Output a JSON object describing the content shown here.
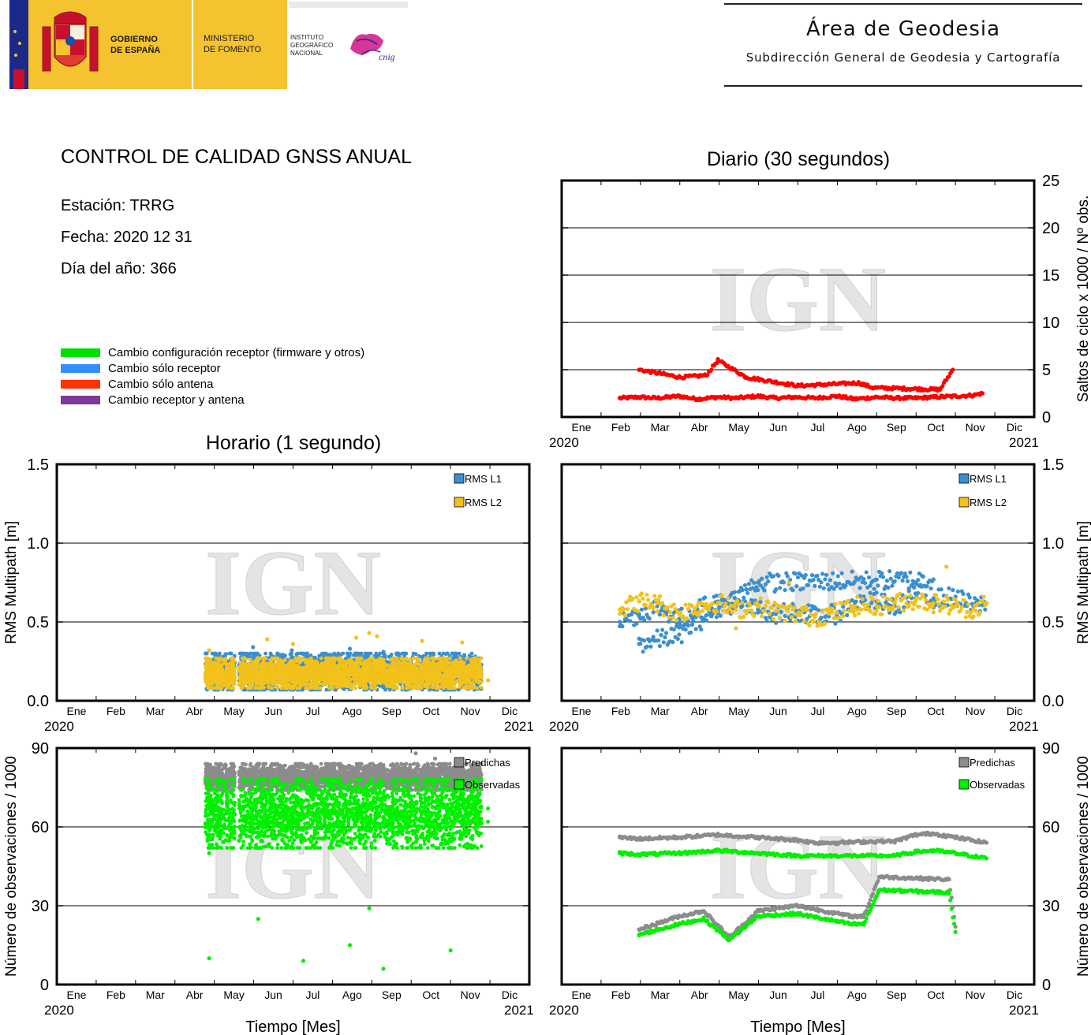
{
  "header": {
    "gov_line1": "GOBIERNO",
    "gov_line2": "DE ESPAÑA",
    "min_line1": "MINISTERIO",
    "min_line2": "DE FOMENTO",
    "ign_line1": "INSTITUTO",
    "ign_line2": "GEOGRÁFICO",
    "ign_line3": "NACIONAL",
    "cnig_logo": "cnig",
    "area_title": "Área de Geodesia",
    "area_subtitle": "Subdirección General de Geodesia y Cartografía"
  },
  "report": {
    "title": "CONTROL DE CALIDAD GNSS ANUAL",
    "station": "Estación: TRRG",
    "date": "Fecha: 2020 12 31",
    "doy": "Día del año: 366"
  },
  "legend": [
    {
      "label": "Cambio configuración receptor (firmware y otros)",
      "color": "#00e000"
    },
    {
      "label": "Cambio sólo receptor",
      "color": "#2f8fff"
    },
    {
      "label": "Cambio sólo antena",
      "color": "#ff3300"
    },
    {
      "label": "Cambio receptor y antena",
      "color": "#7b3a99"
    }
  ],
  "colors": {
    "slips": "#ff0000",
    "rms_l1": "#3a8fd0",
    "rms_l2": "#f2c21b",
    "predichas": "#8c8c8c",
    "observadas": "#00f000",
    "watermark": "IGN"
  },
  "axes": {
    "months": [
      "Ene",
      "Feb",
      "Mar",
      "Abr",
      "May",
      "Jun",
      "Jul",
      "Ago",
      "Sep",
      "Oct",
      "Nov",
      "Dic"
    ],
    "year_start": "2020",
    "year_end": "2021",
    "xlabel": "Tiempo [Mes]"
  },
  "titles": {
    "daily": "Diario (30 segundos)",
    "hourly": "Horario (1 segundo)"
  },
  "chart_data": [
    {
      "id": "daily-slips",
      "type": "scatter",
      "title": "Diario (30 segundos)",
      "xlabel": "",
      "ylabel": "Saltos de ciclo x 1000 / Nº obs.",
      "x_range": [
        "2020-01-01",
        "2021-01-01"
      ],
      "ylim": [
        0,
        25
      ],
      "yticks": [
        "0",
        "5",
        "10",
        "15",
        "20",
        "25"
      ],
      "grid": true,
      "series": [
        {
          "color": "#ff0000",
          "points": [
            [
              "2020-02-15",
              2.0
            ],
            [
              "2020-03-01",
              2.1
            ],
            [
              "2020-03-15",
              2.0
            ],
            [
              "2020-04-01",
              2.2
            ],
            [
              "2020-04-15",
              1.9
            ],
            [
              "2020-05-01",
              2.1
            ],
            [
              "2020-05-15",
              2.0
            ],
            [
              "2020-06-01",
              2.2
            ],
            [
              "2020-06-15",
              2.0
            ],
            [
              "2020-07-01",
              2.1
            ],
            [
              "2020-07-15",
              2.0
            ],
            [
              "2020-08-01",
              2.2
            ],
            [
              "2020-08-15",
              1.9
            ],
            [
              "2020-09-01",
              2.1
            ],
            [
              "2020-09-15",
              2.0
            ],
            [
              "2020-10-01",
              2.0
            ],
            [
              "2020-10-15",
              2.1
            ],
            [
              "2020-11-01",
              2.2
            ],
            [
              "2020-11-15",
              2.3
            ],
            [
              "2020-11-22",
              2.5
            ],
            [
              "2020-03-01",
              5.0
            ],
            [
              "2020-04-02",
              4.2
            ],
            [
              "2020-04-22",
              4.4
            ],
            [
              "2020-05-01",
              6.0
            ],
            [
              "2020-05-23",
              4.2
            ],
            [
              "2020-07-02",
              3.3
            ],
            [
              "2020-08-18",
              3.6
            ],
            [
              "2020-08-29",
              3.1
            ],
            [
              "2020-10-20",
              2.9
            ],
            [
              "2020-10-30",
              5.0
            ]
          ]
        }
      ]
    },
    {
      "id": "hourly-rms",
      "type": "scatter",
      "xlabel": "",
      "ylabel": "RMS Multipath [m]",
      "x_range": [
        "2020-01-01",
        "2021-01-01"
      ],
      "ylim": [
        0,
        1.5
      ],
      "yticks": [
        "0.0",
        "0.5",
        "1.0",
        "1.5"
      ],
      "grid": true,
      "series": [
        {
          "name": "RMS L1",
          "color": "#3a8fd0",
          "range": [
            [
              "2020-04-25",
              "2020-11-25"
            ],
            [
              0.07,
              0.3
            ]
          ],
          "outliers": [
            [
              "2020-06-01",
              0.34
            ],
            [
              "2020-07-01",
              0.32
            ],
            [
              "2020-08-15",
              0.33
            ],
            [
              "2020-09-10",
              0.31
            ],
            [
              "2020-11-05",
              0.3
            ]
          ]
        },
        {
          "name": "RMS L2",
          "color": "#f2c21b",
          "range": [
            [
              "2020-04-25",
              "2020-11-25"
            ],
            [
              0.08,
              0.27
            ]
          ],
          "outliers": [
            [
              "2020-04-28",
              0.32
            ],
            [
              "2020-06-12",
              0.39
            ],
            [
              "2020-07-02",
              0.36
            ],
            [
              "2020-08-20",
              0.4
            ],
            [
              "2020-08-30",
              0.43
            ],
            [
              "2020-09-05",
              0.41
            ],
            [
              "2020-10-10",
              0.38
            ],
            [
              "2020-11-10",
              0.37
            ],
            [
              "2020-11-30",
              0.13
            ]
          ]
        }
      ]
    },
    {
      "id": "daily-rms",
      "type": "scatter",
      "xlabel": "",
      "ylabel": "RMS Multipath [m]",
      "x_range": [
        "2020-01-01",
        "2021-01-01"
      ],
      "ylim": [
        0,
        1.5
      ],
      "yticks": [
        "0.0",
        "0.5",
        "1.0",
        "1.5"
      ],
      "grid": true,
      "series": [
        {
          "name": "RMS L1",
          "color": "#3a8fd0",
          "points": [
            [
              "2020-02-15",
              0.5
            ],
            [
              "2020-03-01",
              0.55
            ],
            [
              "2020-03-15",
              0.6
            ],
            [
              "2020-04-01",
              0.52
            ],
            [
              "2020-04-15",
              0.58
            ],
            [
              "2020-05-01",
              0.63
            ],
            [
              "2020-05-15",
              0.6
            ],
            [
              "2020-06-01",
              0.58
            ],
            [
              "2020-06-15",
              0.55
            ],
            [
              "2020-07-01",
              0.57
            ],
            [
              "2020-07-15",
              0.54
            ],
            [
              "2020-08-01",
              0.55
            ],
            [
              "2020-08-15",
              0.62
            ],
            [
              "2020-09-01",
              0.63
            ],
            [
              "2020-09-15",
              0.6
            ],
            [
              "2020-10-01",
              0.68
            ],
            [
              "2020-10-15",
              0.65
            ],
            [
              "2020-11-01",
              0.66
            ],
            [
              "2020-11-15",
              0.6
            ],
            [
              "2020-11-25",
              0.62
            ],
            [
              "2020-03-01",
              0.36
            ],
            [
              "2020-04-01",
              0.42
            ],
            [
              "2020-06-01",
              0.75
            ],
            [
              "2020-10-15",
              0.77
            ]
          ]
        },
        {
          "name": "RMS L2",
          "color": "#f2c21b",
          "points": [
            [
              "2020-02-15",
              0.58
            ],
            [
              "2020-03-01",
              0.63
            ],
            [
              "2020-03-15",
              0.62
            ],
            [
              "2020-04-01",
              0.55
            ],
            [
              "2020-04-15",
              0.6
            ],
            [
              "2020-05-01",
              0.62
            ],
            [
              "2020-05-15",
              0.58
            ],
            [
              "2020-06-01",
              0.6
            ],
            [
              "2020-06-15",
              0.57
            ],
            [
              "2020-07-01",
              0.55
            ],
            [
              "2020-07-15",
              0.53
            ],
            [
              "2020-08-01",
              0.56
            ],
            [
              "2020-08-15",
              0.6
            ],
            [
              "2020-09-01",
              0.6
            ],
            [
              "2020-09-15",
              0.62
            ],
            [
              "2020-10-01",
              0.64
            ],
            [
              "2020-10-15",
              0.62
            ],
            [
              "2020-11-01",
              0.6
            ],
            [
              "2020-11-15",
              0.58
            ],
            [
              "2020-11-25",
              0.62
            ],
            [
              "2020-10-25",
              0.85
            ],
            [
              "2020-06-25",
              0.75
            ],
            [
              "2020-05-15",
              0.46
            ]
          ]
        }
      ]
    },
    {
      "id": "hourly-obs",
      "type": "scatter",
      "xlabel": "Tiempo [Mes]",
      "ylabel": "Número de observaciones / 1000",
      "x_range": [
        "2020-01-01",
        "2021-01-01"
      ],
      "ylim": [
        0,
        90
      ],
      "yticks": [
        "0",
        "30",
        "60",
        "90"
      ],
      "grid": true,
      "series": [
        {
          "name": "Predichas",
          "color": "#8c8c8c",
          "range": [
            [
              "2020-04-25",
              "2020-11-25"
            ],
            [
              74,
              84
            ]
          ],
          "outliers": [
            [
              "2020-10-05",
              88
            ],
            [
              "2020-10-20",
              86
            ]
          ]
        },
        {
          "name": "Observadas",
          "color": "#00f000",
          "range": [
            [
              "2020-04-25",
              "2020-11-25"
            ],
            [
              52,
              78
            ]
          ],
          "outliers": [
            [
              "2020-04-28",
              50
            ],
            [
              "2020-04-28",
              10
            ],
            [
              "2020-06-05",
              25
            ],
            [
              "2020-07-10",
              9
            ],
            [
              "2020-08-15",
              15
            ],
            [
              "2020-08-30",
              29
            ],
            [
              "2020-09-10",
              6
            ],
            [
              "2020-11-01",
              13
            ],
            [
              "2020-11-30",
              67
            ],
            [
              "2020-11-30",
              62
            ]
          ]
        }
      ]
    },
    {
      "id": "daily-obs",
      "type": "scatter",
      "xlabel": "Tiempo [Mes]",
      "ylabel": "Número de observaciones / 1000",
      "x_range": [
        "2020-01-01",
        "2021-01-01"
      ],
      "ylim": [
        0,
        90
      ],
      "yticks": [
        "0",
        "30",
        "60",
        "90"
      ],
      "grid": true,
      "series": [
        {
          "name": "Predichas",
          "color": "#8c8c8c",
          "points": [
            [
              "2020-02-15",
              56
            ],
            [
              "2020-03-01",
              55.5
            ],
            [
              "2020-04-01",
              56
            ],
            [
              "2020-05-01",
              57
            ],
            [
              "2020-06-01",
              56
            ],
            [
              "2020-07-01",
              55
            ],
            [
              "2020-07-15",
              54
            ],
            [
              "2020-08-01",
              54
            ],
            [
              "2020-09-01",
              54.5
            ],
            [
              "2020-09-15",
              54.5
            ],
            [
              "2020-10-01",
              57
            ],
            [
              "2020-10-15",
              57.5
            ],
            [
              "2020-11-01",
              56
            ],
            [
              "2020-11-25",
              54
            ],
            [
              "2020-03-01",
              21
            ],
            [
              "2020-04-01",
              26
            ],
            [
              "2020-04-20",
              28
            ],
            [
              "2020-05-10",
              18
            ],
            [
              "2020-06-01",
              28
            ],
            [
              "2020-07-01",
              30
            ],
            [
              "2020-08-12",
              26
            ],
            [
              "2020-08-22",
              26
            ],
            [
              "2020-09-03",
              41
            ],
            [
              "2020-10-27",
              40
            ],
            [
              "2020-11-01",
              22
            ]
          ]
        },
        {
          "name": "Observadas",
          "color": "#00f000",
          "points": [
            [
              "2020-02-15",
              50
            ],
            [
              "2020-03-01",
              49.5
            ],
            [
              "2020-04-01",
              50
            ],
            [
              "2020-05-01",
              51
            ],
            [
              "2020-06-01",
              50
            ],
            [
              "2020-07-01",
              49
            ],
            [
              "2020-07-15",
              49
            ],
            [
              "2020-08-01",
              49
            ],
            [
              "2020-09-01",
              49
            ],
            [
              "2020-09-15",
              49
            ],
            [
              "2020-10-01",
              50.5
            ],
            [
              "2020-10-15",
              51
            ],
            [
              "2020-11-01",
              50
            ],
            [
              "2020-11-25",
              48
            ],
            [
              "2020-03-01",
              19
            ],
            [
              "2020-04-01",
              23
            ],
            [
              "2020-04-20",
              25
            ],
            [
              "2020-05-10",
              17
            ],
            [
              "2020-06-01",
              26
            ],
            [
              "2020-07-01",
              27
            ],
            [
              "2020-08-12",
              23
            ],
            [
              "2020-08-22",
              23
            ],
            [
              "2020-09-03",
              36
            ],
            [
              "2020-10-27",
              35
            ],
            [
              "2020-11-01",
              20
            ]
          ]
        }
      ]
    }
  ]
}
